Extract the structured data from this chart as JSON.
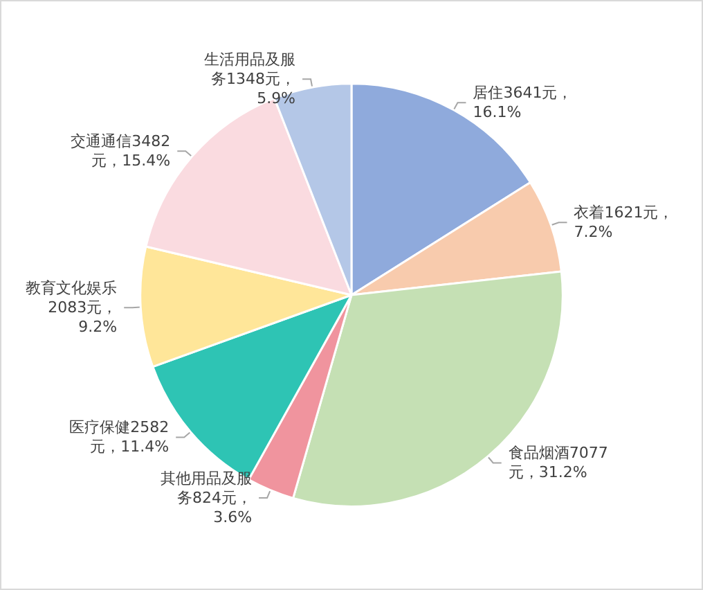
{
  "chart_data": {
    "type": "pie",
    "categories": [
      "居住",
      "衣着",
      "食品烟酒",
      "其他用品及服务",
      "医疗保健",
      "教育文化娱乐",
      "交通通信",
      "生活用品及服务"
    ],
    "values": [
      3641,
      1621,
      7077,
      824,
      2582,
      2083,
      3482,
      1348
    ],
    "value_labels": [
      "3641元，16.1%",
      "1621元，7.2%",
      "7077元，31.2%",
      "824元，3.6%",
      "2582元，11.4%",
      "2083元，9.2%",
      "3482元，15.4%",
      "1348元，5.9%"
    ],
    "colors": [
      "#8faadc",
      "#f8cbad",
      "#c5e0b4",
      "#f0949e",
      "#2ec4b4",
      "#ffe699",
      "#fadbe0",
      "#b4c7e7"
    ],
    "legend": false
  }
}
